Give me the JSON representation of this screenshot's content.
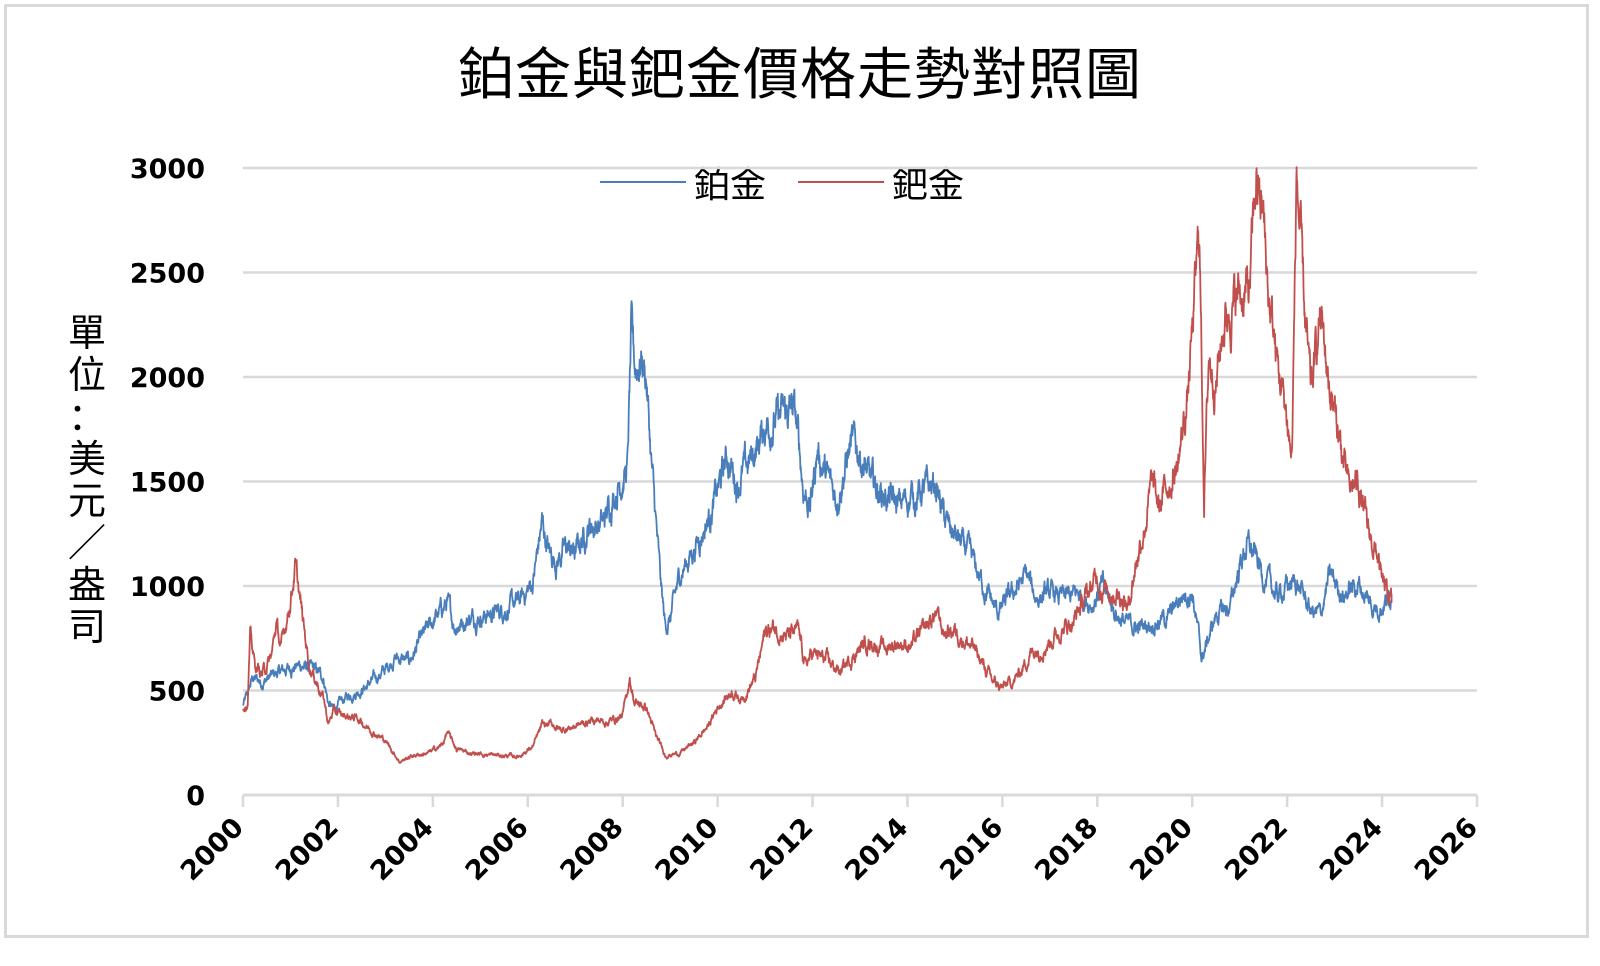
{
  "chart_data": {
    "type": "line",
    "title": "鉑金與鈀金價格走勢對照圖",
    "xlabel": "",
    "ylabel": "單位：美元／盎司",
    "xlim": [
      2000,
      2026
    ],
    "ylim": [
      0,
      3000
    ],
    "x_ticks": [
      "2000",
      "2002",
      "2004",
      "2006",
      "2008",
      "2010",
      "2012",
      "2014",
      "2016",
      "2018",
      "2020",
      "2022",
      "2024",
      "2026"
    ],
    "y_ticks": [
      "0",
      "500",
      "1000",
      "1500",
      "2000",
      "2500",
      "3000"
    ],
    "grid": "horizontal",
    "legend_position": "top-center",
    "series": [
      {
        "name": "鉑金",
        "color": "#4a7ebb",
        "points": [
          [
            2000.0,
            430
          ],
          [
            2000.1,
            480
          ],
          [
            2000.2,
            560
          ],
          [
            2000.4,
            540
          ],
          [
            2000.7,
            580
          ],
          [
            2001.0,
            610
          ],
          [
            2001.2,
            620
          ],
          [
            2001.5,
            600
          ],
          [
            2001.7,
            560
          ],
          [
            2001.8,
            440
          ],
          [
            2001.9,
            410
          ],
          [
            2002.2,
            470
          ],
          [
            2002.6,
            520
          ],
          [
            2003.0,
            600
          ],
          [
            2003.2,
            660
          ],
          [
            2003.5,
            640
          ],
          [
            2003.8,
            760
          ],
          [
            2004.1,
            860
          ],
          [
            2004.3,
            920
          ],
          [
            2004.45,
            810
          ],
          [
            2004.8,
            850
          ],
          [
            2005.3,
            870
          ],
          [
            2005.8,
            920
          ],
          [
            2006.1,
            1010
          ],
          [
            2006.3,
            1300
          ],
          [
            2006.45,
            1160
          ],
          [
            2006.6,
            1120
          ],
          [
            2006.8,
            1180
          ],
          [
            2007.0,
            1160
          ],
          [
            2007.3,
            1290
          ],
          [
            2007.6,
            1300
          ],
          [
            2007.8,
            1440
          ],
          [
            2008.0,
            1530
          ],
          [
            2008.1,
            1560
          ],
          [
            2008.18,
            2200
          ],
          [
            2008.25,
            2040
          ],
          [
            2008.4,
            2100
          ],
          [
            2008.5,
            2000
          ],
          [
            2008.6,
            1600
          ],
          [
            2008.8,
            1000
          ],
          [
            2008.9,
            800
          ],
          [
            2009.0,
            840
          ],
          [
            2009.2,
            1050
          ],
          [
            2009.5,
            1180
          ],
          [
            2009.8,
            1320
          ],
          [
            2010.0,
            1450
          ],
          [
            2010.2,
            1620
          ],
          [
            2010.4,
            1500
          ],
          [
            2010.6,
            1560
          ],
          [
            2010.9,
            1700
          ],
          [
            2011.0,
            1780
          ],
          [
            2011.3,
            1800
          ],
          [
            2011.6,
            1850
          ],
          [
            2011.7,
            1700
          ],
          [
            2011.8,
            1480
          ],
          [
            2011.95,
            1380
          ],
          [
            2012.1,
            1650
          ],
          [
            2012.3,
            1520
          ],
          [
            2012.5,
            1420
          ],
          [
            2012.8,
            1670
          ],
          [
            2013.0,
            1640
          ],
          [
            2013.2,
            1500
          ],
          [
            2013.5,
            1440
          ],
          [
            2013.8,
            1380
          ],
          [
            2014.0,
            1420
          ],
          [
            2014.3,
            1450
          ],
          [
            2014.6,
            1480
          ],
          [
            2014.8,
            1300
          ],
          [
            2015.0,
            1240
          ],
          [
            2015.3,
            1150
          ],
          [
            2015.6,
            1000
          ],
          [
            2015.9,
            870
          ],
          [
            2016.2,
            960
          ],
          [
            2016.5,
            1050
          ],
          [
            2016.7,
            950
          ],
          [
            2017.0,
            960
          ],
          [
            2017.3,
            940
          ],
          [
            2017.6,
            960
          ],
          [
            2017.9,
            920
          ],
          [
            2018.1,
            1000
          ],
          [
            2018.4,
            870
          ],
          [
            2018.6,
            820
          ],
          [
            2018.9,
            800
          ],
          [
            2019.2,
            830
          ],
          [
            2019.5,
            850
          ],
          [
            2019.8,
            960
          ],
          [
            2020.0,
            980
          ],
          [
            2020.2,
            650
          ],
          [
            2020.5,
            860
          ],
          [
            2020.8,
            900
          ],
          [
            2021.0,
            1100
          ],
          [
            2021.15,
            1200
          ],
          [
            2021.3,
            1150
          ],
          [
            2021.5,
            1050
          ],
          [
            2021.8,
            950
          ],
          [
            2022.0,
            1000
          ],
          [
            2022.2,
            1020
          ],
          [
            2022.5,
            880
          ],
          [
            2022.7,
            860
          ],
          [
            2022.9,
            1050
          ],
          [
            2023.2,
            960
          ],
          [
            2023.5,
            1010
          ],
          [
            2023.8,
            900
          ],
          [
            2024.0,
            910
          ],
          [
            2024.2,
            960
          ]
        ]
      },
      {
        "name": "鈀金",
        "color": "#c0504d",
        "points": [
          [
            2000.0,
            420
          ],
          [
            2000.1,
            450
          ],
          [
            2000.15,
            760
          ],
          [
            2000.25,
            620
          ],
          [
            2000.4,
            580
          ],
          [
            2000.6,
            660
          ],
          [
            2000.7,
            820
          ],
          [
            2000.8,
            700
          ],
          [
            2001.0,
            940
          ],
          [
            2001.1,
            1090
          ],
          [
            2001.25,
            850
          ],
          [
            2001.4,
            620
          ],
          [
            2001.6,
            520
          ],
          [
            2001.7,
            460
          ],
          [
            2001.8,
            340
          ],
          [
            2001.9,
            400
          ],
          [
            2002.1,
            380
          ],
          [
            2002.4,
            370
          ],
          [
            2002.7,
            310
          ],
          [
            2003.0,
            260
          ],
          [
            2003.3,
            160
          ],
          [
            2003.6,
            190
          ],
          [
            2003.9,
            200
          ],
          [
            2004.2,
            240
          ],
          [
            2004.3,
            300
          ],
          [
            2004.5,
            220
          ],
          [
            2004.8,
            200
          ],
          [
            2005.3,
            190
          ],
          [
            2005.8,
            185
          ],
          [
            2006.1,
            230
          ],
          [
            2006.3,
            330
          ],
          [
            2006.5,
            340
          ],
          [
            2006.7,
            310
          ],
          [
            2007.0,
            330
          ],
          [
            2007.4,
            360
          ],
          [
            2007.7,
            350
          ],
          [
            2008.0,
            380
          ],
          [
            2008.15,
            560
          ],
          [
            2008.25,
            440
          ],
          [
            2008.5,
            420
          ],
          [
            2008.7,
            280
          ],
          [
            2008.9,
            190
          ],
          [
            2009.2,
            200
          ],
          [
            2009.5,
            250
          ],
          [
            2009.8,
            330
          ],
          [
            2010.0,
            420
          ],
          [
            2010.3,
            500
          ],
          [
            2010.5,
            460
          ],
          [
            2010.8,
            560
          ],
          [
            2011.0,
            780
          ],
          [
            2011.2,
            800
          ],
          [
            2011.5,
            760
          ],
          [
            2011.7,
            780
          ],
          [
            2011.85,
            620
          ],
          [
            2012.0,
            680
          ],
          [
            2012.3,
            640
          ],
          [
            2012.6,
            590
          ],
          [
            2012.9,
            680
          ],
          [
            2013.2,
            740
          ],
          [
            2013.5,
            700
          ],
          [
            2013.8,
            730
          ],
          [
            2014.1,
            720
          ],
          [
            2014.4,
            800
          ],
          [
            2014.6,
            870
          ],
          [
            2014.75,
            780
          ],
          [
            2015.0,
            790
          ],
          [
            2015.4,
            700
          ],
          [
            2015.6,
            620
          ],
          [
            2015.8,
            540
          ],
          [
            2016.0,
            510
          ],
          [
            2016.3,
            560
          ],
          [
            2016.6,
            680
          ],
          [
            2016.9,
            720
          ],
          [
            2017.2,
            780
          ],
          [
            2017.5,
            840
          ],
          [
            2017.8,
            960
          ],
          [
            2018.0,
            1050
          ],
          [
            2018.1,
            990
          ],
          [
            2018.3,
            980
          ],
          [
            2018.5,
            960
          ],
          [
            2018.65,
            900
          ],
          [
            2018.8,
            1100
          ],
          [
            2019.0,
            1300
          ],
          [
            2019.15,
            1480
          ],
          [
            2019.3,
            1370
          ],
          [
            2019.5,
            1500
          ],
          [
            2019.7,
            1580
          ],
          [
            2019.9,
            1900
          ],
          [
            2020.0,
            2200
          ],
          [
            2020.15,
            2700
          ],
          [
            2020.25,
            1450
          ],
          [
            2020.35,
            2100
          ],
          [
            2020.5,
            2000
          ],
          [
            2020.7,
            2300
          ],
          [
            2021.0,
            2400
          ],
          [
            2021.2,
            2400
          ],
          [
            2021.35,
            2950
          ],
          [
            2021.5,
            2750
          ],
          [
            2021.6,
            2400
          ],
          [
            2021.8,
            2050
          ],
          [
            2022.0,
            1800
          ],
          [
            2022.1,
            1600
          ],
          [
            2022.2,
            2980
          ],
          [
            2022.35,
            2350
          ],
          [
            2022.5,
            1900
          ],
          [
            2022.7,
            2300
          ],
          [
            2022.9,
            1950
          ],
          [
            2023.1,
            1700
          ],
          [
            2023.3,
            1450
          ],
          [
            2023.5,
            1500
          ],
          [
            2023.7,
            1250
          ],
          [
            2023.9,
            1150
          ],
          [
            2024.0,
            1000
          ],
          [
            2024.2,
            920
          ]
        ]
      }
    ]
  }
}
